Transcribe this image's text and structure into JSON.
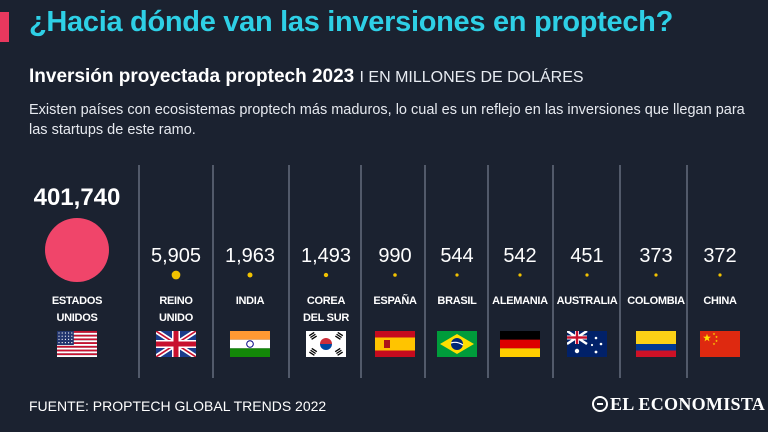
{
  "header": {
    "title": "¿Hacia dónde van las inversiones en proptech?",
    "subtitle_strong": "Inversión proyectada proptech 2023",
    "subtitle_light": "I EN MILLONES DE DOLÁRES",
    "description": "Existen países con ecosistemas proptech más maduros, lo cual es un reflejo en las inversiones que llegan para las startups de este ramo."
  },
  "chart_data": {
    "type": "bubble",
    "title": "Inversión proyectada proptech 2023",
    "unit": "millones de dólares",
    "categories": [
      [
        "ESTADOS",
        "UNIDOS"
      ],
      [
        "REINO",
        "UNIDO"
      ],
      [
        "INDIA"
      ],
      [
        "COREA",
        "DEL SUR"
      ],
      [
        "ESPAÑA"
      ],
      [
        "BRASIL"
      ],
      [
        "ALEMANIA"
      ],
      [
        "AUSTRALIA"
      ],
      [
        "COLOMBIA"
      ],
      [
        "CHINA"
      ]
    ],
    "values": [
      401740,
      5905,
      1963,
      1493,
      990,
      544,
      542,
      451,
      373,
      372
    ],
    "value_labels": [
      "401,740",
      "5,905",
      "1,963",
      "1,493",
      "990",
      "544",
      "542",
      "451",
      "373",
      "372"
    ],
    "flags": [
      "us-flag",
      "uk-flag",
      "india-flag",
      "korea-flag",
      "spain-flag",
      "brazil-flag",
      "germany-flag",
      "australia-flag",
      "colombia-flag",
      "china-flag"
    ],
    "colors": {
      "largest": "#f0456a",
      "others": "#f2c200",
      "divider": "#8a93a3"
    }
  },
  "footer": {
    "source": "FUENTE: PROPTECH GLOBAL TRENDS 2022",
    "logo": "EL ECONOMISTA"
  }
}
